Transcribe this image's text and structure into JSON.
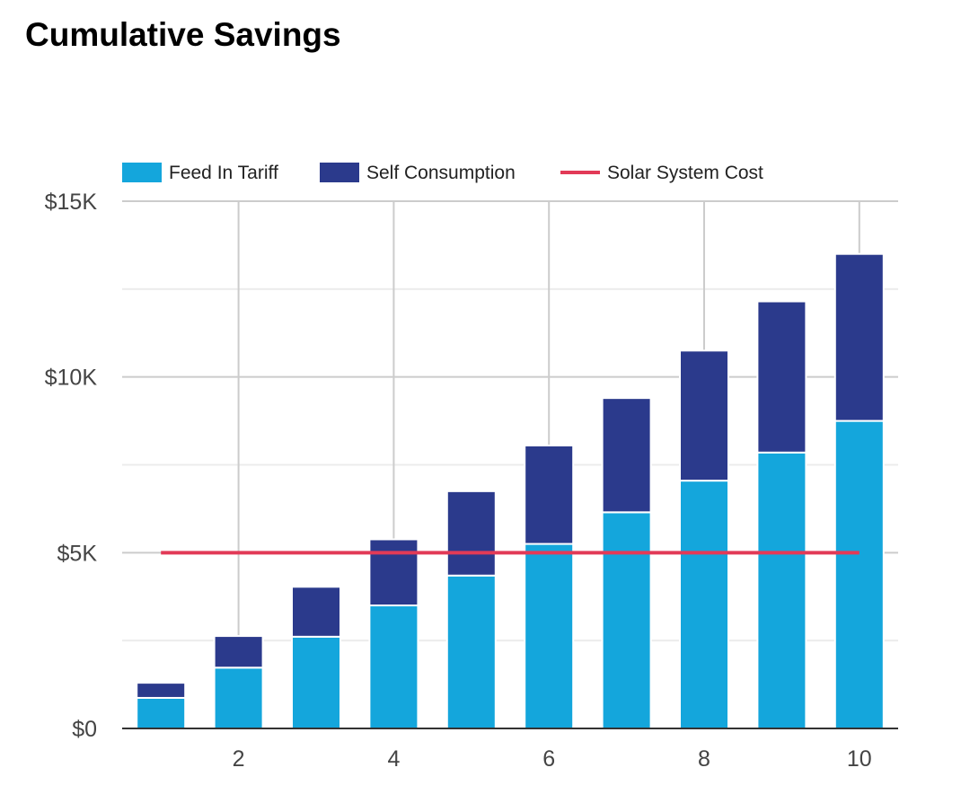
{
  "title": "Cumulative Savings",
  "chart_data": {
    "type": "bar",
    "stacked": true,
    "x": [
      1,
      2,
      3,
      4,
      5,
      6,
      7,
      8,
      9,
      10
    ],
    "x_ticks": [
      2,
      4,
      6,
      8,
      10
    ],
    "series": [
      {
        "name": "Feed In Tariff",
        "type": "bar",
        "color": "#14a6dc",
        "values": [
          870,
          1730,
          2610,
          3500,
          4350,
          5250,
          6150,
          7050,
          7850,
          8750
        ]
      },
      {
        "name": "Self Consumption",
        "type": "bar",
        "color": "#2b3a8c",
        "values": [
          430,
          900,
          1420,
          1880,
          2400,
          2800,
          3250,
          3700,
          4300,
          4750
        ]
      },
      {
        "name": "Solar System Cost",
        "type": "line",
        "color": "#e23a57",
        "values": [
          5000,
          5000,
          5000,
          5000,
          5000,
          5000,
          5000,
          5000,
          5000,
          5000
        ]
      }
    ],
    "ylim": [
      0,
      15000
    ],
    "y_ticks": [
      {
        "value": 0,
        "label": "$0"
      },
      {
        "value": 5000,
        "label": "$5K"
      },
      {
        "value": 10000,
        "label": "$10K"
      },
      {
        "value": 15000,
        "label": "$15K"
      }
    ],
    "y_minor_ticks": [
      2500,
      7500,
      12500
    ],
    "legend_position": "top-left",
    "grid": true
  }
}
